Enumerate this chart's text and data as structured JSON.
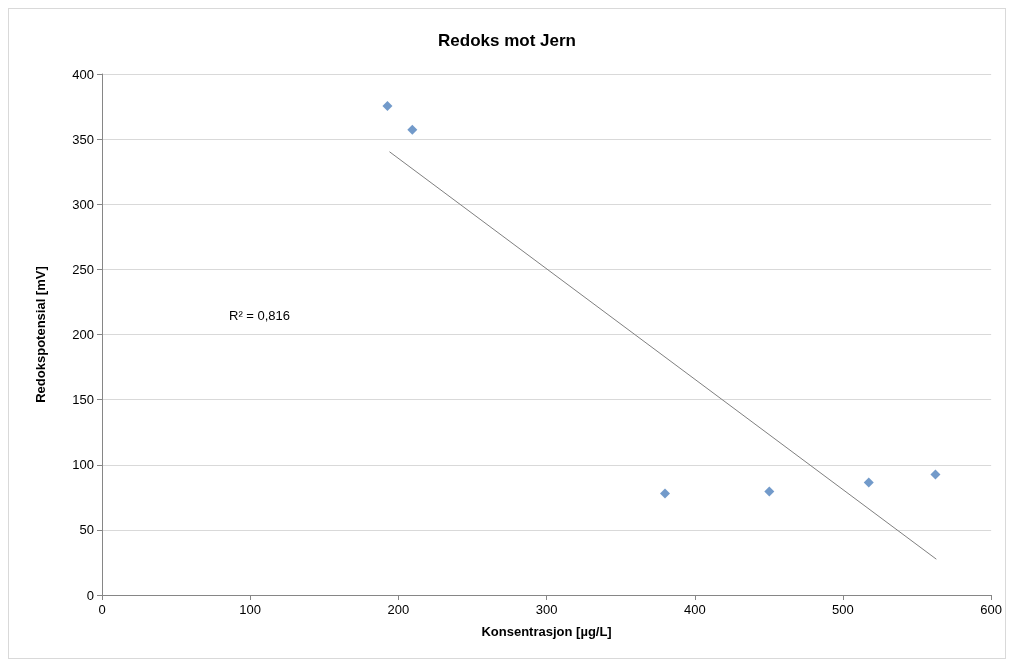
{
  "chart_data": {
    "type": "scatter",
    "title": "Redoks mot Jern",
    "xlabel": "Konsentrasjon [µg/L]",
    "ylabel": "Redokspotensial [mV]",
    "annotations": [
      "R² = 0,816"
    ],
    "xlim": [
      0,
      600
    ],
    "xticks": [
      0,
      100,
      200,
      300,
      400,
      500,
      600
    ],
    "ylim": [
      0,
      400
    ],
    "yticks": [
      0,
      50,
      100,
      150,
      200,
      250,
      300,
      350,
      400
    ],
    "grid": "y",
    "marker": "diamond",
    "series": [
      {
        "color": "#4f81bd",
        "x": [
          192.6,
          209.4,
          379.9,
          450.3,
          517.4,
          562.4
        ],
        "values": [
          375.5,
          357.2,
          78,
          79.5,
          86.4,
          92.5
        ]
      },
      {
        "type": "line",
        "color": "#7f7f7f",
        "marker": "none",
        "line_style": "solid",
        "x": [
          194,
          563
        ],
        "values": [
          340.3,
          27.5
        ]
      }
    ]
  }
}
